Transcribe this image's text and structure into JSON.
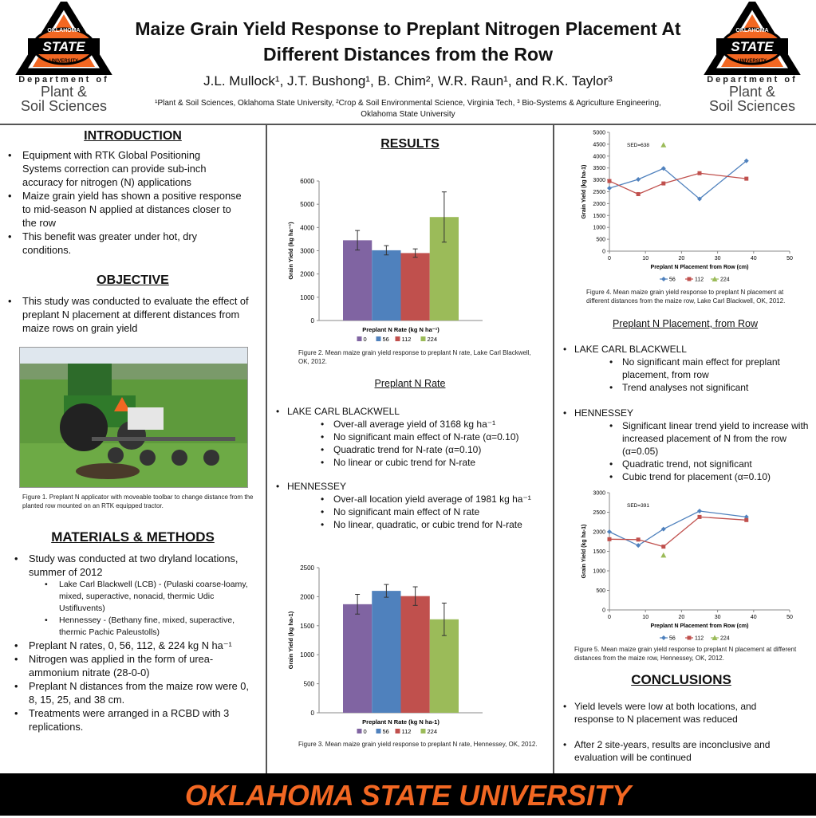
{
  "header": {
    "title_line1": "Maize Grain Yield Response to Preplant Nitrogen Placement At",
    "title_line2": "Different Distances from the Row",
    "authors": "J.L. Mullock¹, J.T. Bushong¹, B. Chim², W.R. Raun¹, and R.K. Taylor³",
    "affil_line1": "¹Plant & Soil Sciences, Oklahoma State University,  ²Crop & Soil Environmental Science, Virginia Tech, ³ Bio-Systems & Agriculture Engineering,",
    "affil_line2": "Oklahoma State University"
  },
  "logo": {
    "top": "OKLAHOMA",
    "mid": "STATE",
    "bottom": "UNIVERSITY",
    "dept": "Department of",
    "dept_line2": "Plant &",
    "dept_line3": "Soil Sciences",
    "orange": "#f26722"
  },
  "intro": {
    "heading": "INTRODUCTION",
    "items": [
      "Equipment with RTK Global Positioning Systems correction can provide sub-inch accuracy for nitrogen (N) applications",
      "Maize grain yield has shown a positive response to mid-season N applied at distances closer to the row",
      "This benefit was greater under hot, dry conditions."
    ]
  },
  "objective": {
    "heading": "OBJECTIVE",
    "items": [
      "This study was conducted to evaluate the effect of preplant N placement at different distances from maize rows on grain yield"
    ]
  },
  "fig1_caption": "Figure 1. Preplant N applicator  with moveable toolbar to change distance from the planted row mounted on an RTK equipped tractor.",
  "methods": {
    "heading": "MATERIALS & METHODS",
    "item1": "Study was conducted at two dryland locations, summer of 2012",
    "sub1": "Lake Carl Blackwell (LCB) - (Pulaski coarse-loamy, mixed, superactive, nonacid, thermic Udic Ustifluvents)",
    "sub2": "Hennessey - (Bethany fine, mixed, superactive, thermic Pachic Paleustolls)",
    "item2": "Preplant N rates, 0, 56, 112, & 224 kg N ha⁻¹",
    "item3": "Nitrogen was applied in the form of urea-ammonium nitrate (28-0-0)",
    "item4": "Preplant N distances from the maize row were 0, 8, 15, 25, and 38 cm.",
    "item5": "Treatments were arranged in a RCBD with 3 replications."
  },
  "results": {
    "heading": "RESULTS",
    "fig2_caption": "Figure 2. Mean maize grain yield response to preplant N rate, Lake Carl Blackwell, OK, 2012.",
    "fig3_caption": "Figure 3. Mean maize grain yield response to preplant N rate, Hennessey, OK, 2012.",
    "rate_heading": "Preplant N Rate",
    "lcb_label": "LAKE CARL BLACKWELL",
    "lcb_items": [
      "Over-all average yield of 3168 kg ha⁻¹",
      "No significant main effect of N-rate (α=0.10)",
      "Quadratic trend for N-rate (α=0.10)",
      "No linear or cubic trend for N-rate"
    ],
    "hen_label": "HENNESSEY",
    "hen_items": [
      "Over-all location yield average of 1981 kg ha⁻¹",
      "No significant main effect of N rate",
      "No linear, quadratic, or cubic trend for N-rate"
    ]
  },
  "right": {
    "fig4_caption": "Figure 4. Mean maize grain yield response to preplant N placement at different distances from the maize row, Lake Carl Blackwell, OK, 2012.",
    "placement_heading": "Preplant N Placement, from Row",
    "lcb_label": "LAKE CARL BLACKWELL",
    "lcb_items": [
      "No significant main effect for preplant placement, from row",
      "Trend analyses not significant"
    ],
    "hen_label": "HENNESSEY",
    "hen_items": [
      "Significant linear trend yield to increase with increased placement of N from the row (α=0.05)",
      "Quadratic trend, not significant",
      "Cubic trend for placement (α=0.10)"
    ],
    "fig5_caption": "Figure  5. Mean maize grain yield response to preplant N placement at different distances from the maize row, Hennessey, OK, 2012.",
    "conclusions_heading": "CONCLUSIONS",
    "conclusions": [
      "Yield levels were low at both locations, and response to N placement was reduced",
      "After 2 site-years, results are inconclusive and evaluation will be continued"
    ]
  },
  "footer": "OKLAHOMA STATE UNIVERSITY",
  "chart_data": [
    {
      "type": "bar",
      "id": "fig2",
      "xlabel": "Preplant N Rate (kg N ha⁻¹)",
      "ylabel": "Grain Yield (kg ha⁻¹)",
      "ylim": [
        0,
        6000
      ],
      "yticks": [
        0,
        1000,
        2000,
        3000,
        4000,
        5000,
        6000
      ],
      "categories": [
        "0",
        "56",
        "112",
        "224"
      ],
      "values": [
        3450,
        3020,
        2900,
        4450
      ],
      "errors": [
        420,
        200,
        180,
        1080
      ],
      "colors": [
        "#8064a2",
        "#4f81bd",
        "#c0504d",
        "#9bbb59"
      ],
      "legend": "bottom"
    },
    {
      "type": "bar",
      "id": "fig3",
      "xlabel": "Preplant N Rate (kg N ha-1)",
      "ylabel": "Grain Yield (kg ha-1)",
      "ylim": [
        0,
        2500
      ],
      "yticks": [
        0,
        500,
        1000,
        1500,
        2000,
        2500
      ],
      "categories": [
        "0",
        "56",
        "112",
        "224"
      ],
      "values": [
        1870,
        2100,
        2010,
        1610
      ],
      "errors": [
        170,
        110,
        160,
        280
      ],
      "colors": [
        "#8064a2",
        "#4f81bd",
        "#c0504d",
        "#9bbb59"
      ],
      "legend": "bottom"
    },
    {
      "type": "line",
      "id": "fig4",
      "xlabel": "Preplant N Placement from Row (cm)",
      "ylabel": "Grain Yield (kg ha-1)",
      "xlim": [
        0,
        50
      ],
      "ylim": [
        0,
        5000
      ],
      "xticks": [
        0,
        10,
        20,
        30,
        40,
        50
      ],
      "yticks": [
        0,
        500,
        1000,
        1500,
        2000,
        2500,
        3000,
        3500,
        4000,
        4500,
        5000
      ],
      "annotation": "SED=638",
      "series": [
        {
          "name": "56",
          "color": "#4f81bd",
          "marker": "diamond",
          "x": [
            0,
            8,
            15,
            25,
            38
          ],
          "y": [
            2650,
            3020,
            3480,
            2200,
            3800
          ]
        },
        {
          "name": "112",
          "color": "#c0504d",
          "marker": "square",
          "x": [
            0,
            8,
            15,
            25,
            38
          ],
          "y": [
            2950,
            2400,
            2850,
            3280,
            3050
          ]
        },
        {
          "name": "224",
          "color": "#9bbb59",
          "marker": "triangle",
          "x": [
            15
          ],
          "y": [
            4470
          ]
        }
      ]
    },
    {
      "type": "line",
      "id": "fig5",
      "xlabel": "Preplant N Placement from Row (cm)",
      "ylabel": "Grain Yield (kg ha-1)",
      "xlim": [
        0,
        50
      ],
      "ylim": [
        0,
        3000
      ],
      "xticks": [
        0,
        10,
        20,
        30,
        40,
        50
      ],
      "yticks": [
        0,
        500,
        1000,
        1500,
        2000,
        2500,
        3000
      ],
      "annotation": "SED=391",
      "series": [
        {
          "name": "56",
          "color": "#4f81bd",
          "marker": "diamond",
          "x": [
            0,
            8,
            15,
            25,
            38
          ],
          "y": [
            2000,
            1650,
            2070,
            2530,
            2380
          ]
        },
        {
          "name": "112",
          "color": "#c0504d",
          "marker": "square",
          "x": [
            0,
            8,
            15,
            25,
            38
          ],
          "y": [
            1810,
            1800,
            1620,
            2380,
            2300
          ]
        },
        {
          "name": "224",
          "color": "#9bbb59",
          "marker": "triangle",
          "x": [
            15
          ],
          "y": [
            1400
          ]
        }
      ]
    }
  ]
}
